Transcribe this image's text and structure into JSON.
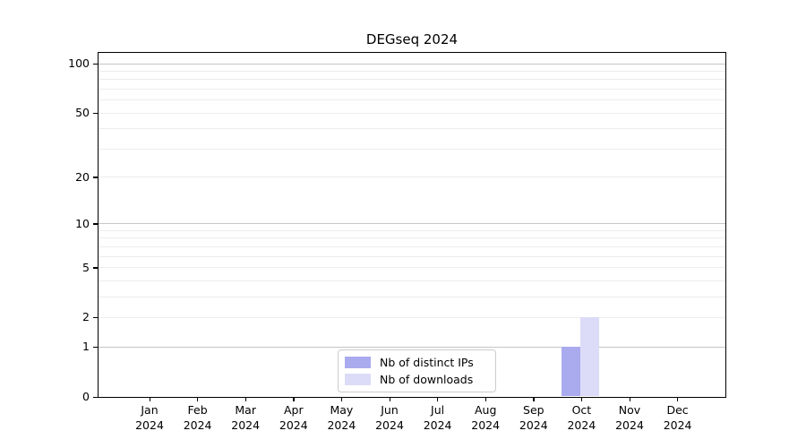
{
  "chart_data": {
    "type": "bar",
    "title": "DEGseq 2024",
    "categories": [
      "Jan 2024",
      "Feb 2024",
      "Mar 2024",
      "Apr 2024",
      "May 2024",
      "Jun 2024",
      "Jul 2024",
      "Aug 2024",
      "Sep 2024",
      "Oct 2024",
      "Nov 2024",
      "Dec 2024"
    ],
    "series": [
      {
        "name": "Nb of distinct IPs",
        "color": "#aaaaee",
        "values": [
          0,
          0,
          0,
          0,
          0,
          0,
          0,
          0,
          0,
          1,
          0,
          0
        ]
      },
      {
        "name": "Nb of downloads",
        "color": "#dcdcf8",
        "values": [
          0,
          0,
          0,
          0,
          0,
          0,
          0,
          0,
          0,
          2,
          0,
          0
        ]
      }
    ],
    "y_ticks": [
      0,
      1,
      2,
      5,
      10,
      20,
      50,
      100
    ],
    "y_scale": "log1p",
    "ylim": [
      0,
      117
    ],
    "xlabel": "",
    "ylabel": "",
    "grid": true,
    "legend_position": "lower center",
    "colors": {
      "major_grid": "#c6c6c6",
      "minor_grid": "#ededed",
      "axis": "#000000",
      "background": "#ffffff"
    }
  }
}
